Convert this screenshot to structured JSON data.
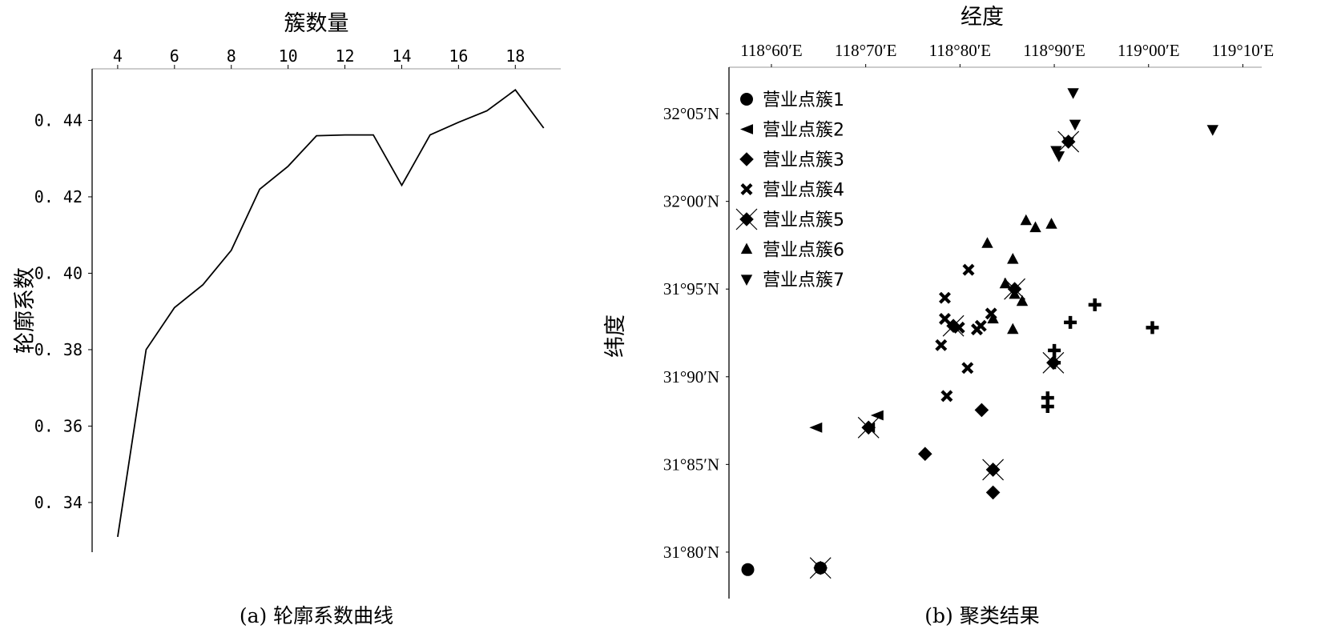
{
  "chart_data": [
    {
      "type": "line",
      "xlabel": "簇数量",
      "ylabel": "轮廓系数",
      "caption": "(a) 轮廓系数曲线",
      "xticks": [
        4,
        6,
        8,
        10,
        12,
        14,
        16,
        18
      ],
      "xtick_labels": [
        "4",
        "6",
        "8",
        "10",
        "12",
        "14",
        "16",
        "18"
      ],
      "yticks": [
        0.34,
        0.36,
        0.38,
        0.4,
        0.42,
        0.44
      ],
      "ytick_labels": [
        "0. 34",
        "0. 36",
        "0. 38",
        "0. 40",
        "0. 42",
        "0. 44"
      ],
      "xlim": [
        3.1,
        19.6
      ],
      "ylim": [
        0.327,
        0.4535
      ],
      "x_axis_position": "top",
      "x": [
        4,
        5,
        6,
        7,
        8,
        9,
        10,
        11,
        12,
        13,
        14,
        15,
        16,
        17,
        18,
        19
      ],
      "y": [
        0.331,
        0.38,
        0.391,
        0.397,
        0.406,
        0.422,
        0.428,
        0.436,
        0.4362,
        0.4362,
        0.423,
        0.4362,
        0.4395,
        0.4425,
        0.448,
        0.438
      ]
    },
    {
      "type": "scatter",
      "xlabel": "经度",
      "ylabel": "纬度",
      "caption": "(b) 聚类结果",
      "xticks": [
        118.6,
        118.7,
        118.8,
        118.9,
        119.0,
        119.1
      ],
      "xtick_labels": [
        "118°60′E",
        "118°70′E",
        "118°80′E",
        "118°90′E",
        "119°00′E",
        "119°10′E"
      ],
      "yticks": [
        31.8,
        31.85,
        31.9,
        31.95,
        32.0,
        32.05
      ],
      "ytick_labels": [
        "31°80′N",
        "31°85′N",
        "31°90′N",
        "31°95′N",
        "32°00′N",
        "32°05′N"
      ],
      "xlim": [
        118.555,
        119.12
      ],
      "ylim": [
        31.7735,
        32.0765
      ],
      "x_axis_position": "top",
      "legend_position": "top-left",
      "series": [
        {
          "name": "营业点簇1",
          "marker": "circle",
          "points": [
            [
              118.575,
              31.79
            ],
            [
              118.652,
              31.791
            ]
          ]
        },
        {
          "name": "营业点簇2",
          "marker": "triangle-left",
          "points": [
            [
              118.647,
              31.871
            ],
            [
              118.712,
              31.878
            ],
            [
              118.703,
              31.871
            ]
          ]
        },
        {
          "name": "营业点簇3",
          "marker": "diamond",
          "points": [
            [
              118.763,
              31.856
            ],
            [
              118.823,
              31.881
            ],
            [
              118.835,
              31.847
            ],
            [
              118.835,
              31.834
            ]
          ]
        },
        {
          "name": "营业点簇4",
          "marker": "x-thick",
          "points": [
            [
              118.784,
              31.945
            ],
            [
              118.784,
              31.933
            ],
            [
              118.799,
              31.928
            ],
            [
              118.78,
              31.918
            ],
            [
              118.809,
              31.961
            ],
            [
              118.818,
              31.927
            ],
            [
              118.786,
              31.889
            ],
            [
              118.808,
              31.905
            ],
            [
              118.833,
              31.936
            ],
            [
              118.822,
              31.929
            ]
          ]
        },
        {
          "name": "营业点簇5",
          "marker": "diamond-x",
          "points": [
            [
              118.652,
              31.791
            ],
            [
              118.703,
              31.871
            ],
            [
              118.835,
              31.847
            ],
            [
              118.858,
              31.95
            ],
            [
              118.899,
              31.908
            ],
            [
              118.915,
              32.034
            ],
            [
              118.793,
              31.929
            ]
          ]
        },
        {
          "name": "营业点簇6",
          "marker": "triangle-up",
          "points": [
            [
              118.829,
              31.976
            ],
            [
              118.87,
              31.989
            ],
            [
              118.88,
              31.985
            ],
            [
              118.897,
              31.987
            ],
            [
              118.856,
              31.967
            ],
            [
              118.848,
              31.953
            ],
            [
              118.858,
              31.947
            ],
            [
              118.866,
              31.943
            ],
            [
              118.835,
              31.933
            ],
            [
              118.856,
              31.927
            ]
          ]
        },
        {
          "name": "营业点簇7",
          "marker": "triangle-down",
          "points": [
            [
              118.92,
              32.062
            ],
            [
              118.922,
              32.044
            ],
            [
              118.915,
              32.034
            ],
            [
              118.902,
              32.029
            ],
            [
              118.905,
              32.026
            ],
            [
              119.068,
              32.041
            ]
          ]
        },
        {
          "name": "",
          "marker": "plus",
          "points": [
            [
              118.943,
              31.941
            ],
            [
              119.004,
              31.928
            ],
            [
              118.917,
              31.931
            ],
            [
              118.9,
              31.915
            ],
            [
              118.9,
              31.908
            ],
            [
              118.893,
              31.888
            ],
            [
              118.893,
              31.883
            ]
          ]
        }
      ]
    }
  ]
}
